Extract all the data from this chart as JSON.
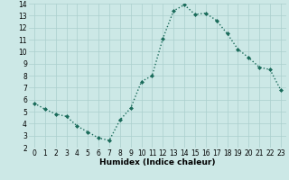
{
  "x": [
    0,
    1,
    2,
    3,
    4,
    5,
    6,
    7,
    8,
    9,
    10,
    11,
    12,
    13,
    14,
    15,
    16,
    17,
    18,
    19,
    20,
    21,
    22,
    23
  ],
  "y": [
    5.7,
    5.2,
    4.8,
    4.6,
    3.8,
    3.3,
    2.8,
    2.6,
    4.3,
    5.3,
    7.5,
    8.0,
    11.1,
    13.4,
    13.9,
    13.1,
    13.2,
    12.6,
    11.5,
    10.2,
    9.5,
    8.7,
    8.5,
    6.8
  ],
  "line_color": "#1a6b5a",
  "marker": "D",
  "marker_size": 2.0,
  "bg_color": "#cce8e6",
  "grid_color": "#aacfcd",
  "xlabel": "Humidex (Indice chaleur)",
  "ylim": [
    2,
    14
  ],
  "xlim": [
    -0.5,
    23.5
  ],
  "yticks": [
    2,
    3,
    4,
    5,
    6,
    7,
    8,
    9,
    10,
    11,
    12,
    13,
    14
  ],
  "xticks": [
    0,
    1,
    2,
    3,
    4,
    5,
    6,
    7,
    8,
    9,
    10,
    11,
    12,
    13,
    14,
    15,
    16,
    17,
    18,
    19,
    20,
    21,
    22,
    23
  ],
  "xlabel_fontsize": 6.5,
  "tick_fontsize": 5.5,
  "linewidth": 1.0,
  "bottom_bar_color": "#5a8a80",
  "bottom_bar_height": 0.12
}
